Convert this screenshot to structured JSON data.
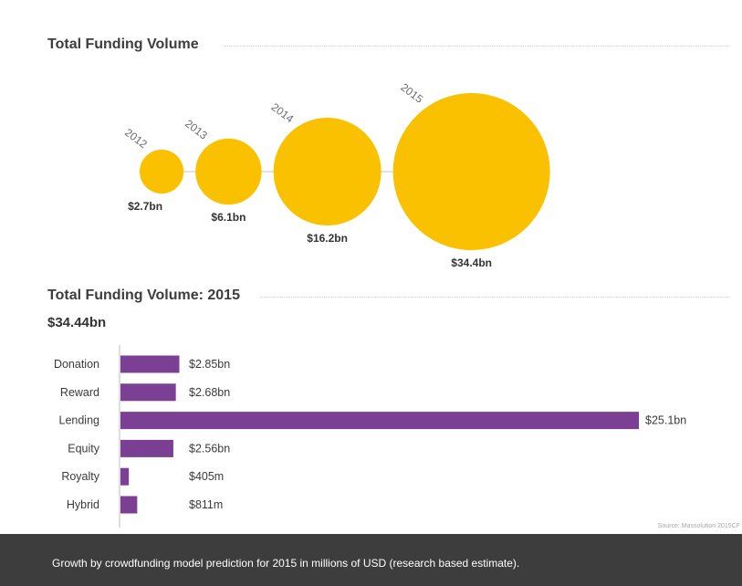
{
  "chart_data": [
    {
      "type": "bubble",
      "title": "Total Funding Volume",
      "categories": [
        "2012",
        "2013",
        "2014",
        "2015"
      ],
      "values": [
        2.7,
        6.1,
        16.2,
        34.4
      ],
      "value_labels": [
        "$2.7bn",
        "$6.1bn",
        "$16.2bn",
        "$34.4bn"
      ],
      "unit": "bn USD",
      "color": "#f9c100",
      "connector_color": "#d9d9d9"
    },
    {
      "type": "bar",
      "orientation": "horizontal",
      "title": "Total Funding Volume: 2015",
      "total_label": "$34.44bn",
      "categories": [
        "Donation",
        "Reward",
        "Lending",
        "Equity",
        "Royalty",
        "Hybrid"
      ],
      "values": [
        2.85,
        2.68,
        25.1,
        2.56,
        0.405,
        0.811
      ],
      "value_labels": [
        "$2.85bn",
        "$2.68bn",
        "$25.1bn",
        "$2.56bn",
        "$405m",
        "$811m"
      ],
      "unit": "bn USD",
      "xlim": [
        0,
        25.1
      ],
      "color": "#7b3f93",
      "axis_color": "#bdbdbd",
      "grid": false
    }
  ],
  "source": "Source: Massolution 2015CF",
  "footer": {
    "caption": "Growth by crowdfunding model prediction for 2015 in millions of USD (research based estimate).",
    "background": "#3d3d3d"
  }
}
